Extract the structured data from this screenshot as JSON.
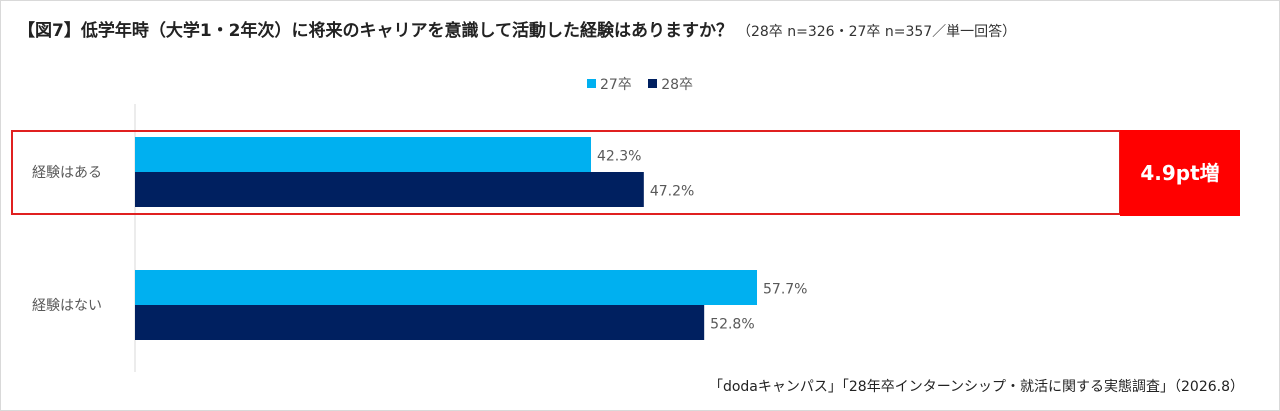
{
  "title": "【図7】低学年時（大学1・2年次）に将来のキャリアを意識して活動した経験はありますか？",
  "subtitle": "（28卒 n=326・27卒 n=357／単一回答）",
  "source": "「dodaキャンパス」「28年卒インターンシップ・就活に関する実態調査」（2026.8）",
  "callout": "4.9pt増",
  "colors": {
    "series_27": "#00b0f0",
    "series_28": "#002060",
    "callout_bg": "#ff0000",
    "highlight_border": "#e02020"
  },
  "chart_data": {
    "type": "bar",
    "orientation": "horizontal",
    "categories": [
      "経験はある",
      "経験はない"
    ],
    "series": [
      {
        "name": "27卒",
        "values": [
          42.3,
          57.7
        ]
      },
      {
        "name": "28卒",
        "values": [
          47.2,
          52.8
        ]
      }
    ],
    "data_labels": [
      [
        "42.3%",
        "57.7%"
      ],
      [
        "47.2%",
        "52.8%"
      ]
    ],
    "xlim": [
      0,
      100
    ],
    "legend_position": "top",
    "grid": false,
    "highlight_category": "経験はある"
  }
}
